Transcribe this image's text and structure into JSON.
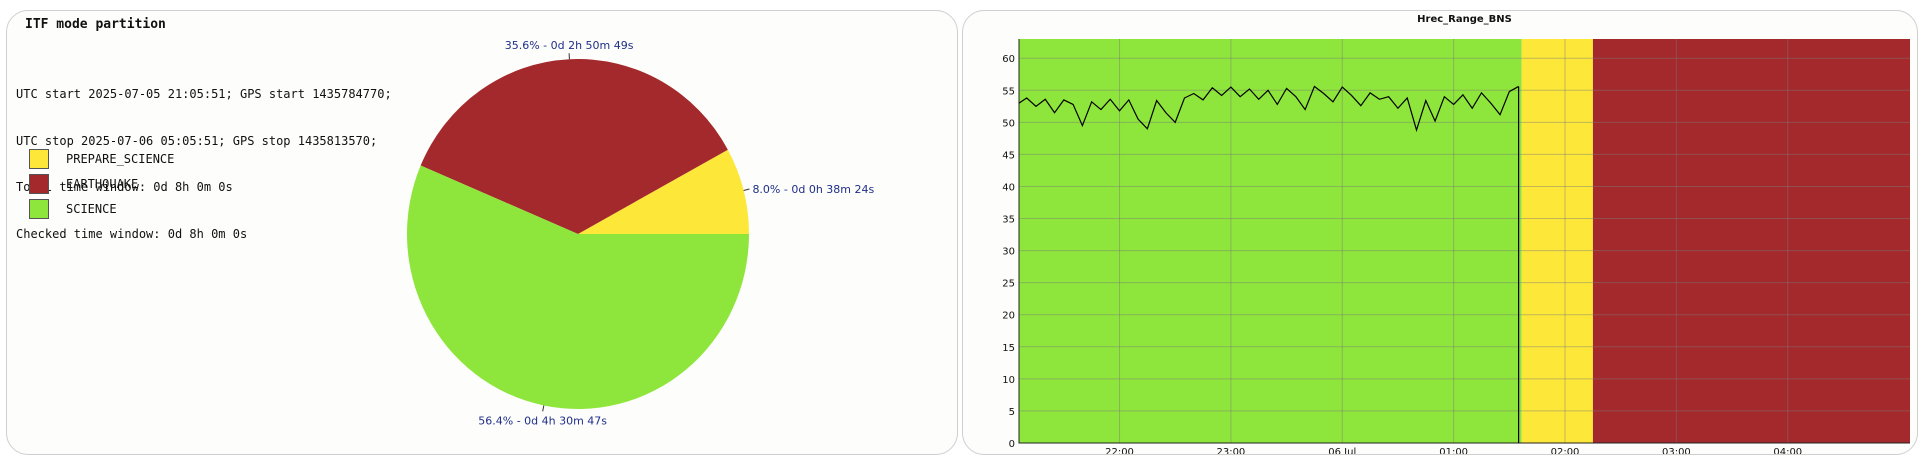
{
  "left_panel": {
    "title": "ITF mode partition",
    "info_lines": [
      "UTC start 2025-07-05 21:05:51; GPS start 1435784770;",
      "UTC stop 2025-07-06 05:05:51; GPS stop 1435813570;",
      "Total time window: 0d 8h 0m 0s",
      "Checked time window: 0d 8h 0m 0s"
    ]
  },
  "colors": {
    "prepare_science": "#fde83a",
    "earthquake": "#a4292c",
    "science": "#8ee53b",
    "label_text": "#1f2f8a",
    "line": "#000000"
  },
  "chart_data": [
    {
      "type": "pie",
      "legend_placement": "left",
      "slices": [
        {
          "name": "PREPARE_SCIENCE",
          "percent": 8.0,
          "label": "8.0% - 0d 0h 38m 24s",
          "color": "#fde83a"
        },
        {
          "name": "EARTHQUAKE",
          "percent": 35.6,
          "label": "35.6% - 0d 2h 50m 49s",
          "color": "#a4292c"
        },
        {
          "name": "SCIENCE",
          "percent": 56.4,
          "label": "56.4% - 0d 4h 30m 47s",
          "color": "#8ee53b"
        }
      ]
    },
    {
      "type": "line",
      "title": "Hrec_Range_BNS",
      "xlabel": "",
      "ylabel": "",
      "ylim": [
        0,
        63
      ],
      "xlim": [
        "2025-07-05 21:05:51",
        "2025-07-06 05:05:51"
      ],
      "grid": true,
      "y_ticks": [
        0,
        5,
        10,
        15,
        20,
        25,
        30,
        35,
        40,
        45,
        50,
        55,
        60
      ],
      "x_ticks": [
        {
          "label": "22:00",
          "time": "2025-07-05 22:00"
        },
        {
          "label": "23:00",
          "time": "2025-07-05 23:00"
        },
        {
          "label": "06 Jul",
          "time": "2025-07-06 00:00"
        },
        {
          "label": "01:00",
          "time": "2025-07-06 01:00"
        },
        {
          "label": "02:00",
          "time": "2025-07-06 02:00"
        },
        {
          "label": "03:00",
          "time": "2025-07-06 03:00"
        },
        {
          "label": "04:00",
          "time": "2025-07-06 04:00"
        }
      ],
      "mode_bands": [
        {
          "mode": "SCIENCE",
          "start": "2025-07-05 21:05:51",
          "end": "2025-07-06 01:36:38",
          "color": "#8ee53b"
        },
        {
          "mode": "PREPARE_SCIENCE",
          "start": "2025-07-06 01:36:38",
          "end": "2025-07-06 02:15:02",
          "color": "#fde83a"
        },
        {
          "mode": "EARTHQUAKE",
          "start": "2025-07-06 02:15:02",
          "end": "2025-07-06 05:05:51",
          "color": "#a4292c"
        }
      ],
      "series": [
        {
          "points": [
            [
              "2025-07-05 21:05:51",
              53.0
            ],
            [
              "2025-07-05 21:10",
              53.8
            ],
            [
              "2025-07-05 21:15",
              52.5
            ],
            [
              "2025-07-05 21:20",
              53.6
            ],
            [
              "2025-07-05 21:25",
              51.5
            ],
            [
              "2025-07-05 21:30",
              53.5
            ],
            [
              "2025-07-05 21:35",
              52.8
            ],
            [
              "2025-07-05 21:40",
              49.5
            ],
            [
              "2025-07-05 21:45",
              53.2
            ],
            [
              "2025-07-05 21:50",
              52.0
            ],
            [
              "2025-07-05 21:55",
              53.6
            ],
            [
              "2025-07-05 22:00",
              51.8
            ],
            [
              "2025-07-05 22:05",
              53.5
            ],
            [
              "2025-07-05 22:10",
              50.5
            ],
            [
              "2025-07-05 22:15",
              49.0
            ],
            [
              "2025-07-05 22:20",
              53.4
            ],
            [
              "2025-07-05 22:25",
              51.5
            ],
            [
              "2025-07-05 22:30",
              50.0
            ],
            [
              "2025-07-05 22:35",
              53.8
            ],
            [
              "2025-07-05 22:40",
              54.5
            ],
            [
              "2025-07-05 22:45",
              53.5
            ],
            [
              "2025-07-05 22:50",
              55.4
            ],
            [
              "2025-07-05 22:55",
              54.2
            ],
            [
              "2025-07-05 23:00",
              55.5
            ],
            [
              "2025-07-05 23:05",
              54.0
            ],
            [
              "2025-07-05 23:10",
              55.2
            ],
            [
              "2025-07-05 23:15",
              53.6
            ],
            [
              "2025-07-05 23:20",
              55.0
            ],
            [
              "2025-07-05 23:25",
              52.8
            ],
            [
              "2025-07-05 23:30",
              55.3
            ],
            [
              "2025-07-05 23:35",
              54.0
            ],
            [
              "2025-07-05 23:40",
              52.0
            ],
            [
              "2025-07-05 23:45",
              55.6
            ],
            [
              "2025-07-05 23:50",
              54.5
            ],
            [
              "2025-07-05 23:55",
              53.2
            ],
            [
              "2025-07-06 00:00",
              55.5
            ],
            [
              "2025-07-06 00:05",
              54.2
            ],
            [
              "2025-07-06 00:10",
              52.6
            ],
            [
              "2025-07-06 00:15",
              54.6
            ],
            [
              "2025-07-06 00:20",
              53.6
            ],
            [
              "2025-07-06 00:25",
              54.0
            ],
            [
              "2025-07-06 00:30",
              52.2
            ],
            [
              "2025-07-06 00:35",
              53.8
            ],
            [
              "2025-07-06 00:40",
              48.8
            ],
            [
              "2025-07-06 00:45",
              53.4
            ],
            [
              "2025-07-06 00:50",
              50.2
            ],
            [
              "2025-07-06 00:55",
              54.0
            ],
            [
              "2025-07-06 01:00",
              52.8
            ],
            [
              "2025-07-06 01:05",
              54.3
            ],
            [
              "2025-07-06 01:10",
              52.2
            ],
            [
              "2025-07-06 01:15",
              54.6
            ],
            [
              "2025-07-06 01:20",
              53.0
            ],
            [
              "2025-07-06 01:25",
              51.2
            ],
            [
              "2025-07-06 01:30",
              54.8
            ],
            [
              "2025-07-06 01:35",
              55.6
            ]
          ]
        }
      ]
    }
  ]
}
